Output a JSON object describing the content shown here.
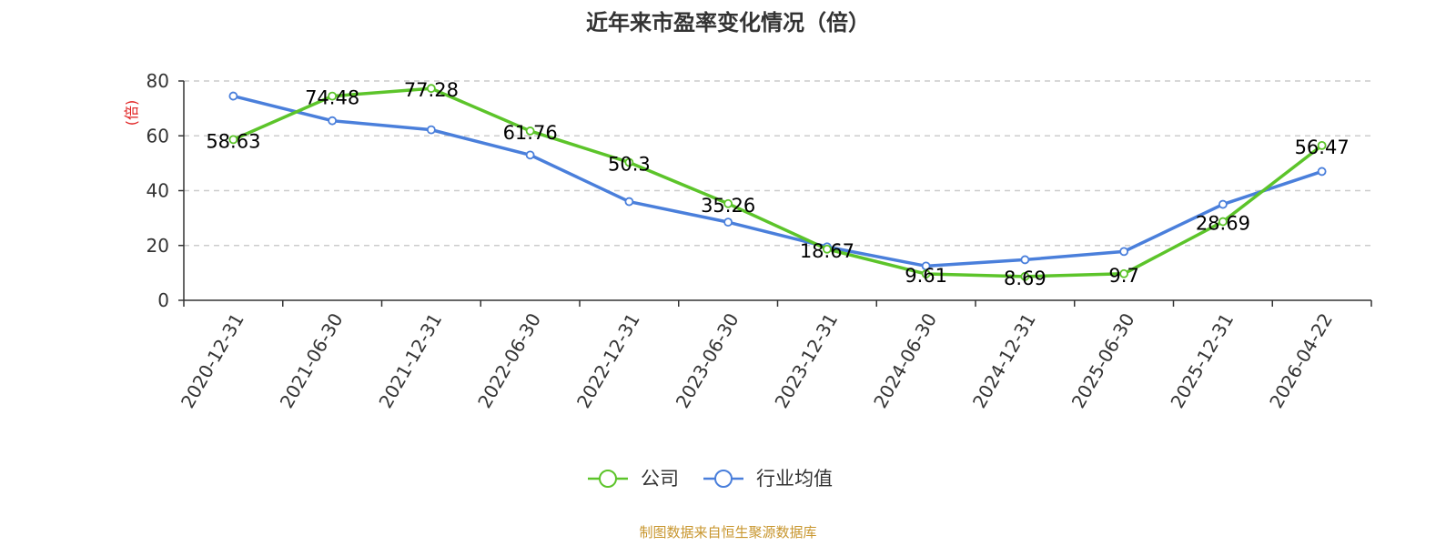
{
  "chart_data": {
    "type": "line",
    "title": "近年来市盈率变化情况（倍）",
    "ylabel": "(倍)",
    "xlabel": "",
    "ylim": [
      0,
      80
    ],
    "yticks": [
      0,
      20,
      40,
      60,
      80
    ],
    "categories": [
      "2020-12-31",
      "2021-06-30",
      "2021-12-31",
      "2022-06-30",
      "2022-12-31",
      "2023-06-30",
      "2023-12-31",
      "2024-06-30",
      "2024-12-31",
      "2025-06-30",
      "2025-12-31",
      "2026-04-22"
    ],
    "grid": true,
    "legend_position": "bottom-center",
    "series": [
      {
        "name": "公司",
        "color": "#5cc42a",
        "values": [
          58.63,
          74.48,
          77.28,
          61.76,
          50.3,
          35.26,
          18.67,
          9.61,
          8.69,
          9.7,
          28.69,
          56.47
        ],
        "labels": [
          "58.63",
          "74.48",
          "77.28",
          "61.76",
          "50.3",
          "35.26",
          "18.67",
          "9.61",
          "8.69",
          "9.7",
          "28.69",
          "56.47"
        ]
      },
      {
        "name": "行业均值",
        "color": "#4a7fdb",
        "values": [
          74.5,
          65.5,
          62.2,
          53.0,
          36.0,
          28.5,
          19.5,
          12.5,
          14.8,
          17.8,
          35.0,
          47.0
        ]
      }
    ]
  },
  "footer": {
    "source_text": "制图数据来自恒生聚源数据库"
  },
  "colors": {
    "ylabel": "#e02020",
    "source": "#c8962e",
    "axis": "#333333",
    "grid": "#cccccc"
  }
}
